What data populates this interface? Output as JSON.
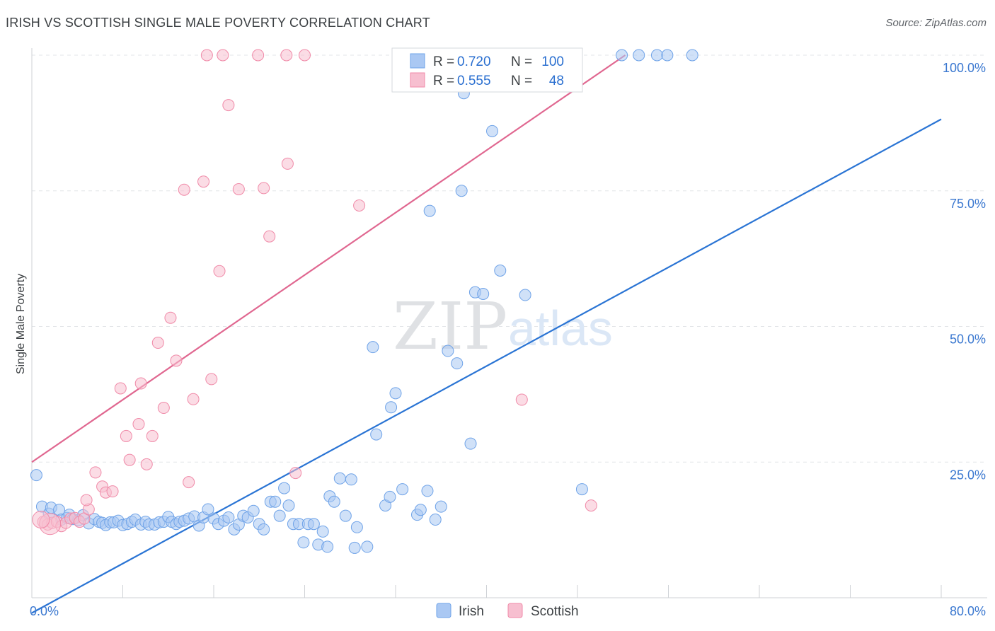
{
  "header": {
    "title": "IRISH VS SCOTTISH SINGLE MALE POVERTY CORRELATION CHART",
    "source": "Source: ZipAtlas.com"
  },
  "watermark": {
    "zip": "ZIP",
    "atlas": "atlas"
  },
  "legend_box": {
    "rows": [
      {
        "r_label": "R = ",
        "r_value": "0.720",
        "n_label": "N = ",
        "n_value": "100",
        "color": "#6fa3e8"
      },
      {
        "r_label": "R = ",
        "r_value": "0.555",
        "n_label": "N = ",
        "n_value": "48",
        "color": "#f08aa8"
      }
    ]
  },
  "chart_data": {
    "type": "scatter",
    "title": "IRISH VS SCOTTISH SINGLE MALE POVERTY CORRELATION CHART",
    "xlabel": "",
    "ylabel": "Single Male Poverty",
    "xlim": [
      0,
      80
    ],
    "ylim": [
      0,
      100
    ],
    "x_tick_labels": [
      "0.0%",
      "80.0%"
    ],
    "y_tick_labels": [
      {
        "value": 25,
        "label": "25.0%"
      },
      {
        "value": 50,
        "label": "50.0%"
      },
      {
        "value": 75,
        "label": "75.0%"
      },
      {
        "value": 100,
        "label": "100.0%"
      }
    ],
    "grid": true,
    "legend": "bottom-center",
    "series": [
      {
        "name": "Irish",
        "color": "#6fa3e8",
        "fill": "#aac8f3",
        "trend": {
          "x": [
            0,
            80
          ],
          "y": [
            -2.8,
            88.2
          ],
          "color": "#2a74d4"
        },
        "points": [
          [
            0.4,
            22.6
          ],
          [
            0.9,
            16.8
          ],
          [
            1.5,
            15.5
          ],
          [
            1.7,
            16.6
          ],
          [
            2.4,
            16.2
          ],
          [
            2.6,
            14.4
          ],
          [
            3.1,
            14.7
          ],
          [
            3.3,
            15.3
          ],
          [
            3.6,
            14.5
          ],
          [
            4.1,
            14.3
          ],
          [
            4.5,
            15.2
          ],
          [
            5.0,
            13.7
          ],
          [
            5.5,
            14.5
          ],
          [
            5.9,
            14.0
          ],
          [
            6.2,
            13.8
          ],
          [
            6.5,
            13.4
          ],
          [
            6.9,
            13.9
          ],
          [
            7.2,
            13.9
          ],
          [
            7.6,
            14.2
          ],
          [
            8.0,
            13.4
          ],
          [
            8.4,
            13.6
          ],
          [
            8.8,
            14.0
          ],
          [
            9.1,
            14.4
          ],
          [
            9.6,
            13.5
          ],
          [
            10.0,
            14.0
          ],
          [
            10.3,
            13.5
          ],
          [
            10.8,
            13.5
          ],
          [
            11.2,
            13.9
          ],
          [
            11.6,
            14.0
          ],
          [
            12.0,
            14.9
          ],
          [
            12.3,
            14.0
          ],
          [
            12.7,
            13.6
          ],
          [
            13.0,
            14.0
          ],
          [
            13.4,
            14.2
          ],
          [
            13.8,
            14.6
          ],
          [
            14.3,
            15.0
          ],
          [
            14.7,
            13.3
          ],
          [
            15.1,
            14.8
          ],
          [
            15.5,
            16.3
          ],
          [
            16.0,
            14.6
          ],
          [
            16.4,
            13.6
          ],
          [
            16.9,
            14.2
          ],
          [
            17.3,
            14.8
          ],
          [
            17.8,
            12.6
          ],
          [
            18.2,
            13.5
          ],
          [
            18.6,
            15.1
          ],
          [
            19.0,
            14.8
          ],
          [
            19.5,
            16.0
          ],
          [
            20.0,
            13.6
          ],
          [
            20.4,
            12.6
          ],
          [
            21.0,
            17.7
          ],
          [
            21.4,
            17.7
          ],
          [
            21.8,
            15.1
          ],
          [
            22.2,
            20.2
          ],
          [
            22.6,
            17.0
          ],
          [
            23.0,
            13.6
          ],
          [
            23.5,
            13.6
          ],
          [
            23.9,
            10.2
          ],
          [
            24.3,
            13.6
          ],
          [
            24.8,
            13.6
          ],
          [
            25.2,
            9.8
          ],
          [
            25.6,
            12.2
          ],
          [
            26.0,
            9.4
          ],
          [
            26.2,
            18.7
          ],
          [
            26.6,
            17.7
          ],
          [
            27.1,
            22.0
          ],
          [
            27.6,
            15.1
          ],
          [
            28.1,
            21.8
          ],
          [
            28.4,
            9.2
          ],
          [
            28.6,
            13.0
          ],
          [
            29.5,
            9.4
          ],
          [
            30.3,
            30.1
          ],
          [
            31.1,
            17.0
          ],
          [
            31.5,
            18.6
          ],
          [
            32.0,
            37.7
          ],
          [
            32.6,
            20.0
          ],
          [
            33.9,
            15.3
          ],
          [
            34.2,
            16.2
          ],
          [
            34.8,
            19.7
          ],
          [
            35.5,
            14.4
          ],
          [
            36.0,
            16.8
          ],
          [
            36.6,
            45.5
          ],
          [
            37.4,
            43.2
          ],
          [
            38.6,
            28.4
          ],
          [
            39.0,
            56.3
          ],
          [
            39.7,
            56.0
          ],
          [
            40.5,
            86.0
          ],
          [
            41.2,
            60.3
          ],
          [
            43.4,
            55.8
          ],
          [
            48.4,
            20.0
          ],
          [
            30.0,
            46.2
          ],
          [
            31.6,
            35.1
          ],
          [
            35.0,
            71.3
          ],
          [
            37.8,
            75.0
          ],
          [
            38.0,
            93.0
          ],
          [
            51.9,
            100
          ],
          [
            53.4,
            100
          ],
          [
            55.0,
            100
          ],
          [
            55.9,
            100
          ],
          [
            58.1,
            100
          ]
        ]
      },
      {
        "name": "Scottish",
        "color": "#f08aa8",
        "fill": "#f7bfd0",
        "trend": {
          "x": [
            0,
            52.2
          ],
          "y": [
            25.0,
            100
          ],
          "color": "#e06790"
        },
        "points": [
          [
            1.0,
            14.0
          ],
          [
            1.4,
            13.5
          ],
          [
            1.8,
            13.8
          ],
          [
            2.2,
            14.0
          ],
          [
            2.6,
            13.2
          ],
          [
            3.0,
            13.8
          ],
          [
            3.4,
            14.6
          ],
          [
            3.8,
            14.7
          ],
          [
            4.2,
            14.0
          ],
          [
            4.6,
            14.6
          ],
          [
            5.0,
            16.3
          ],
          [
            4.8,
            18.0
          ],
          [
            5.6,
            23.1
          ],
          [
            6.2,
            20.5
          ],
          [
            6.5,
            19.4
          ],
          [
            7.1,
            19.6
          ],
          [
            7.8,
            38.6
          ],
          [
            8.3,
            29.8
          ],
          [
            8.6,
            25.4
          ],
          [
            9.4,
            32.0
          ],
          [
            9.6,
            39.5
          ],
          [
            10.1,
            24.6
          ],
          [
            10.6,
            29.8
          ],
          [
            11.1,
            47.0
          ],
          [
            11.6,
            35.0
          ],
          [
            12.2,
            51.6
          ],
          [
            12.7,
            43.7
          ],
          [
            13.4,
            75.2
          ],
          [
            13.8,
            21.3
          ],
          [
            14.2,
            36.6
          ],
          [
            15.1,
            76.7
          ],
          [
            15.8,
            40.3
          ],
          [
            16.5,
            60.2
          ],
          [
            17.3,
            90.8
          ],
          [
            18.2,
            75.3
          ],
          [
            20.4,
            75.5
          ],
          [
            20.9,
            66.6
          ],
          [
            22.5,
            80.0
          ],
          [
            23.2,
            23.0
          ],
          [
            28.8,
            72.3
          ],
          [
            15.4,
            100
          ],
          [
            16.8,
            100
          ],
          [
            19.9,
            100
          ],
          [
            22.4,
            100
          ],
          [
            24.0,
            100
          ],
          [
            32.4,
            100
          ],
          [
            43.1,
            36.5
          ],
          [
            49.2,
            17.0
          ]
        ]
      }
    ]
  }
}
